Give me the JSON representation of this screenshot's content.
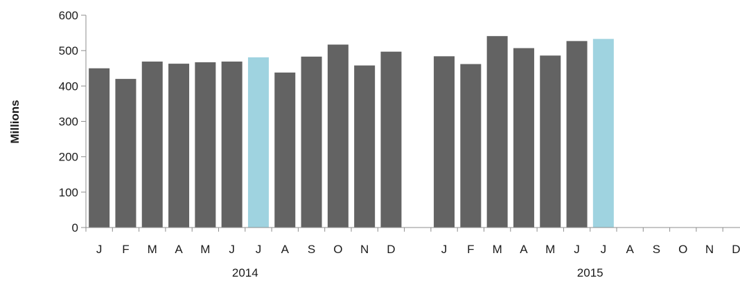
{
  "chart_data": {
    "type": "bar",
    "ylabel": "Millions",
    "xlabel": "",
    "ylim": [
      0,
      600
    ],
    "yticks": [
      0,
      100,
      200,
      300,
      400,
      500,
      600
    ],
    "grid": false,
    "legend": "none",
    "colors": {
      "default": "#636363",
      "highlight": "#9fd3e0",
      "axis": "#8c8c8c"
    },
    "groups": [
      {
        "year": "2014",
        "months": [
          "J",
          "F",
          "M",
          "A",
          "M",
          "J",
          "J",
          "A",
          "S",
          "O",
          "N",
          "D"
        ],
        "values": [
          450,
          420,
          469,
          463,
          467,
          469,
          481,
          438,
          483,
          517,
          458,
          497
        ],
        "highlight": [
          false,
          false,
          false,
          false,
          false,
          false,
          true,
          false,
          false,
          false,
          false,
          false
        ]
      },
      {
        "year": "2015",
        "months": [
          "J",
          "F",
          "M",
          "A",
          "M",
          "J",
          "J",
          "A",
          "S",
          "O",
          "N",
          "D"
        ],
        "values": [
          484,
          462,
          541,
          507,
          486,
          527,
          533,
          null,
          null,
          null,
          null,
          null
        ],
        "highlight": [
          false,
          false,
          false,
          false,
          false,
          false,
          true,
          false,
          false,
          false,
          false,
          false
        ]
      }
    ]
  }
}
